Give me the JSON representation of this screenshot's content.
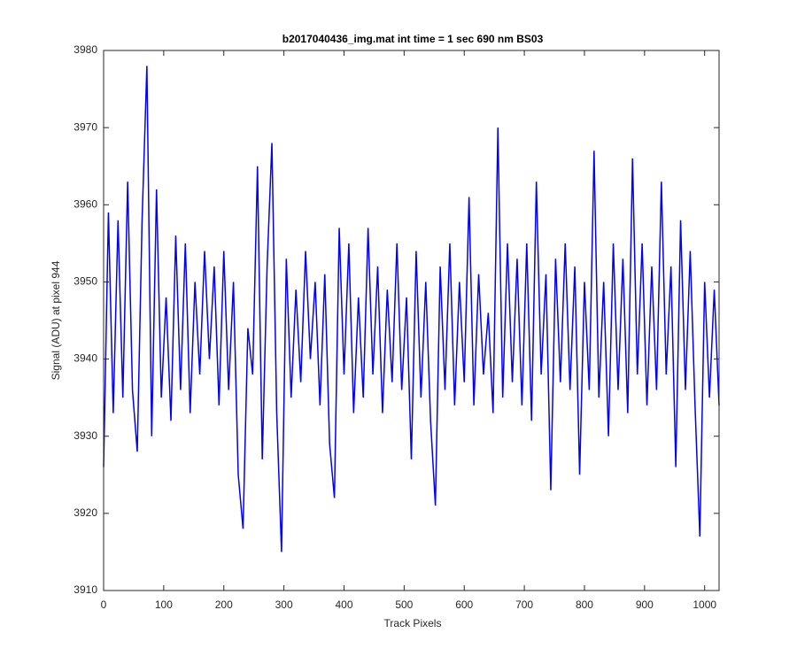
{
  "chart_data": {
    "type": "line",
    "title": "b2017040436_img.mat int time = 1 sec  690 nm BS03",
    "x_label": "Track Pixels",
    "y_label": "Signal (ADU) at pixel 944",
    "x": [
      0,
      8,
      16,
      24,
      32,
      40,
      48,
      56,
      64,
      72,
      80,
      88,
      96,
      104,
      112,
      120,
      128,
      136,
      144,
      152,
      160,
      168,
      176,
      184,
      192,
      200,
      208,
      216,
      224,
      232,
      240,
      248,
      256,
      264,
      272,
      280,
      288,
      296,
      304,
      312,
      320,
      328,
      336,
      344,
      352,
      360,
      368,
      376,
      384,
      392,
      400,
      408,
      416,
      424,
      432,
      440,
      448,
      456,
      464,
      472,
      480,
      488,
      496,
      504,
      512,
      520,
      528,
      536,
      544,
      552,
      560,
      568,
      576,
      584,
      592,
      600,
      608,
      616,
      624,
      632,
      640,
      648,
      656,
      664,
      672,
      680,
      688,
      696,
      704,
      712,
      720,
      728,
      736,
      744,
      752,
      760,
      768,
      776,
      784,
      792,
      800,
      808,
      816,
      824,
      832,
      840,
      848,
      856,
      864,
      872,
      880,
      888,
      896,
      904,
      912,
      920,
      928,
      936,
      944,
      952,
      960,
      968,
      976,
      984,
      992,
      1000,
      1008,
      1016,
      1024
    ],
    "series": [
      {
        "color": "#0000ff",
        "values": [
          3926,
          3959,
          3933,
          3958,
          3935,
          3963,
          3936,
          3928,
          3958,
          3978,
          3930,
          3962,
          3935,
          3948,
          3932,
          3956,
          3936,
          3955,
          3933,
          3950,
          3938,
          3954,
          3940,
          3952,
          3934,
          3954,
          3936,
          3950,
          3925,
          3918,
          3944,
          3938,
          3965,
          3927,
          3952,
          3968,
          3933,
          3915,
          3953,
          3935,
          3949,
          3937,
          3954,
          3940,
          3950,
          3934,
          3951,
          3929,
          3922,
          3957,
          3938,
          3955,
          3933,
          3948,
          3935,
          3957,
          3938,
          3952,
          3933,
          3949,
          3937,
          3955,
          3936,
          3948,
          3927,
          3954,
          3935,
          3950,
          3932,
          3921,
          3952,
          3936,
          3955,
          3934,
          3950,
          3937,
          3961,
          3934,
          3951,
          3938,
          3946,
          3933,
          3970,
          3935,
          3955,
          3937,
          3953,
          3934,
          3955,
          3932,
          3963,
          3938,
          3951,
          3923,
          3953,
          3937,
          3955,
          3936,
          3952,
          3925,
          3950,
          3936,
          3967,
          3935,
          3950,
          3930,
          3955,
          3936,
          3953,
          3933,
          3966,
          3938,
          3955,
          3934,
          3952,
          3936,
          3963,
          3938,
          3952,
          3926,
          3958,
          3936,
          3954,
          3934,
          3917,
          3950,
          3935,
          3949,
          3934
        ]
      }
    ],
    "xlim": [
      0,
      1024
    ],
    "ylim": [
      3910,
      3980
    ],
    "xticks": [
      0,
      100,
      200,
      300,
      400,
      500,
      600,
      700,
      800,
      900,
      1000
    ],
    "yticks": [
      3910,
      3920,
      3930,
      3940,
      3950,
      3960,
      3970,
      3980
    ]
  }
}
